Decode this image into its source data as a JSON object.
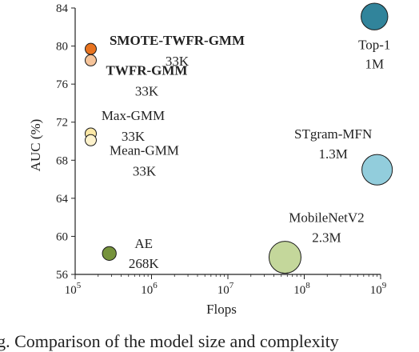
{
  "chart_data": {
    "type": "scatter",
    "title": "",
    "xlabel": "Flops",
    "ylabel": "AUC (%)",
    "xscale": "log",
    "xlim": [
      100000,
      1000000000
    ],
    "ylim": [
      56,
      84
    ],
    "xticks": [
      {
        "base": "10",
        "exp": "5"
      },
      {
        "base": "10",
        "exp": "6"
      },
      {
        "base": "10",
        "exp": "7"
      },
      {
        "base": "10",
        "exp": "8"
      },
      {
        "base": "10",
        "exp": "9"
      }
    ],
    "yticks": [
      "56",
      "60",
      "64",
      "68",
      "72",
      "76",
      "80",
      "84"
    ],
    "points": [
      {
        "label": "SMOTE-TWFR-GMM",
        "size_label": "33K",
        "x": 160000,
        "y": 79.7,
        "params": 33000,
        "color": "#e8731f",
        "bold": true
      },
      {
        "label": "TWFR-GMM",
        "size_label": "33K",
        "x": 160000,
        "y": 78.5,
        "params": 33000,
        "color": "#f6c49a",
        "bold": true
      },
      {
        "label": "Max-GMM",
        "size_label": "33K",
        "x": 160000,
        "y": 70.8,
        "params": 33000,
        "color": "#fce8a6",
        "bold": false
      },
      {
        "label": "Mean-GMM",
        "size_label": "33K",
        "x": 160000,
        "y": 70.1,
        "params": 33000,
        "color": "#fdf2cc",
        "bold": false
      },
      {
        "label": "AE",
        "size_label": "268K",
        "x": 280000,
        "y": 58.2,
        "params": 268000,
        "color": "#76933c",
        "bold": false
      },
      {
        "label": "MobileNetV2",
        "size_label": "2.3M",
        "x": 56000000,
        "y": 57.8,
        "params": 2300000,
        "color": "#c4d79b",
        "bold": false
      },
      {
        "label": "STgram-MFN",
        "size_label": "1.3M",
        "x": 900000000,
        "y": 67.0,
        "params": 1300000,
        "color": "#92cddc",
        "bold": false
      },
      {
        "label": "Top-1",
        "size_label": "1M",
        "x": 830000000,
        "y": 83.1,
        "params": 1000000,
        "color": "#31849b",
        "bold": false
      }
    ]
  },
  "caption": "ig. Comparison of the model size and complexity"
}
